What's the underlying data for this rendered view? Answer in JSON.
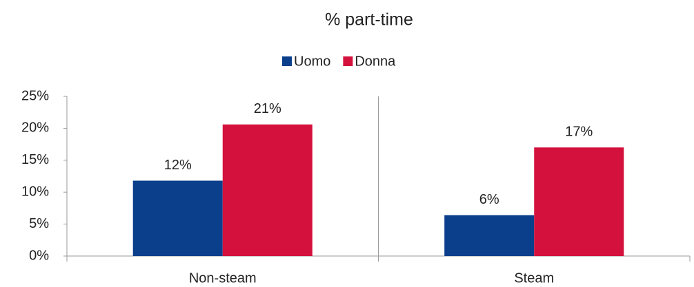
{
  "chart_data": {
    "type": "bar",
    "title": "% part-time",
    "categories": [
      "Non-steam",
      "Steam"
    ],
    "series": [
      {
        "name": "Uomo",
        "color": "#0b3f8c",
        "values": [
          11.8,
          6.4
        ],
        "value_labels": [
          "12%",
          "6%"
        ]
      },
      {
        "name": "Donna",
        "color": "#d3113c",
        "values": [
          20.6,
          17.0
        ],
        "value_labels": [
          "21%",
          "17%"
        ]
      }
    ],
    "ylim": [
      0,
      25
    ],
    "yticks": [
      {
        "value": 0,
        "label": "0%"
      },
      {
        "value": 5,
        "label": "5%"
      },
      {
        "value": 10,
        "label": "10%"
      },
      {
        "value": 15,
        "label": "15%"
      },
      {
        "value": 20,
        "label": "20%"
      },
      {
        "value": 25,
        "label": "25%"
      }
    ],
    "legend": "top"
  }
}
